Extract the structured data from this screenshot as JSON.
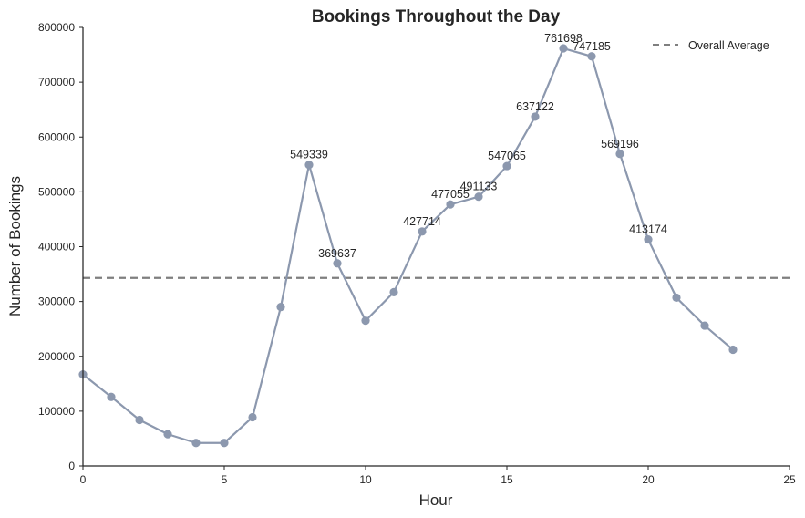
{
  "chart_data": {
    "type": "line",
    "title": "Bookings Throughout the Day",
    "xlabel": "Hour",
    "ylabel": "Number of Bookings",
    "xlim": [
      0,
      25
    ],
    "ylim": [
      0,
      800000
    ],
    "x_ticks": [
      0,
      5,
      10,
      15,
      20,
      25
    ],
    "y_ticks": [
      0,
      100000,
      200000,
      300000,
      400000,
      500000,
      600000,
      700000,
      800000
    ],
    "grid": false,
    "legend_position": "top-right",
    "series": [
      {
        "color": "#8c98ae",
        "x": [
          0,
          1,
          2,
          3,
          4,
          5,
          6,
          7,
          8,
          9,
          10,
          11,
          12,
          13,
          14,
          15,
          16,
          17,
          18,
          19,
          20,
          21,
          22,
          23
        ],
        "values": [
          167000,
          126000,
          84000,
          58000,
          42000,
          42000,
          89000,
          290000,
          549339,
          369637,
          265000,
          317000,
          427714,
          477055,
          491133,
          547065,
          637122,
          761698,
          747185,
          569196,
          413174,
          307000,
          256000,
          212000
        ]
      }
    ],
    "reference_lines": [
      {
        "name": "Overall Average",
        "value": 343000,
        "style": "dashed",
        "color": "#7f7f7f"
      }
    ],
    "annotations": [
      {
        "x": 8,
        "y": 549339,
        "text": "549339"
      },
      {
        "x": 9,
        "y": 369637,
        "text": "369637"
      },
      {
        "x": 12,
        "y": 427714,
        "text": "427714"
      },
      {
        "x": 13,
        "y": 477055,
        "text": "477055"
      },
      {
        "x": 14,
        "y": 491133,
        "text": "491133"
      },
      {
        "x": 15,
        "y": 547065,
        "text": "547065"
      },
      {
        "x": 16,
        "y": 637122,
        "text": "637122"
      },
      {
        "x": 17,
        "y": 761698,
        "text": "761698"
      },
      {
        "x": 18,
        "y": 747185,
        "text": "747185"
      },
      {
        "x": 19,
        "y": 569196,
        "text": "569196"
      },
      {
        "x": 20,
        "y": 413174,
        "text": "413174"
      }
    ]
  }
}
